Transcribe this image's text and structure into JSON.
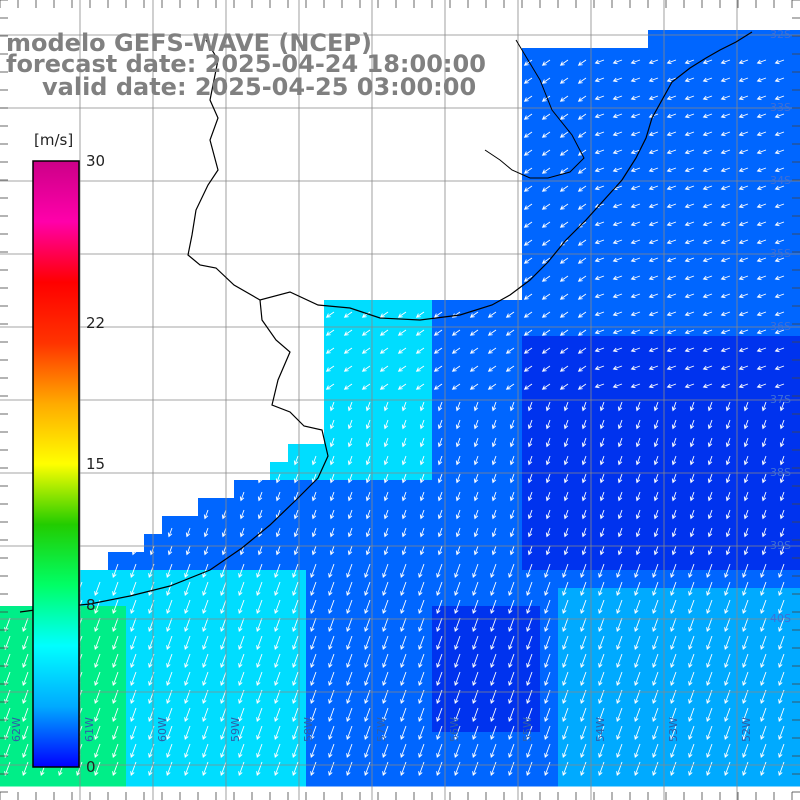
{
  "title": {
    "line1": "modelo GEFS-WAVE (NCEP)",
    "line2": "forecast date: 2025-04-24 18:00:00",
    "line3": "valid date: 2025-04-25 03:00:00"
  },
  "colorbar": {
    "unit": "[m/s]",
    "min": 0,
    "max": 30,
    "ticks": [
      "30",
      "22",
      "15",
      "8",
      "0"
    ],
    "tick_values": [
      30,
      22,
      15,
      8,
      0
    ],
    "colors": [
      "#0000ff",
      "#00aaff",
      "#00ffff",
      "#00ff66",
      "#22cc00",
      "#ffff00",
      "#ffaa00",
      "#ff3300",
      "#ff0000",
      "#ff00aa",
      "#cc0088"
    ]
  },
  "ocean_palette": {
    "deep_blue": "#0033ee",
    "mid_blue": "#0066ff",
    "light_blue": "#00aaff",
    "cyan": "#00ddff",
    "green": "#00ee88",
    "land": "#ffffff",
    "coast": "#000000",
    "grid": "#888888"
  },
  "lat_labels": [
    "32S",
    "33S",
    "34S",
    "35S",
    "36S",
    "37S",
    "38S",
    "39S",
    "40S"
  ],
  "lon_labels": [
    "62W",
    "61W",
    "60W",
    "59W",
    "58W",
    "57W",
    "56W",
    "55W",
    "54W",
    "53W",
    "52W"
  ]
}
